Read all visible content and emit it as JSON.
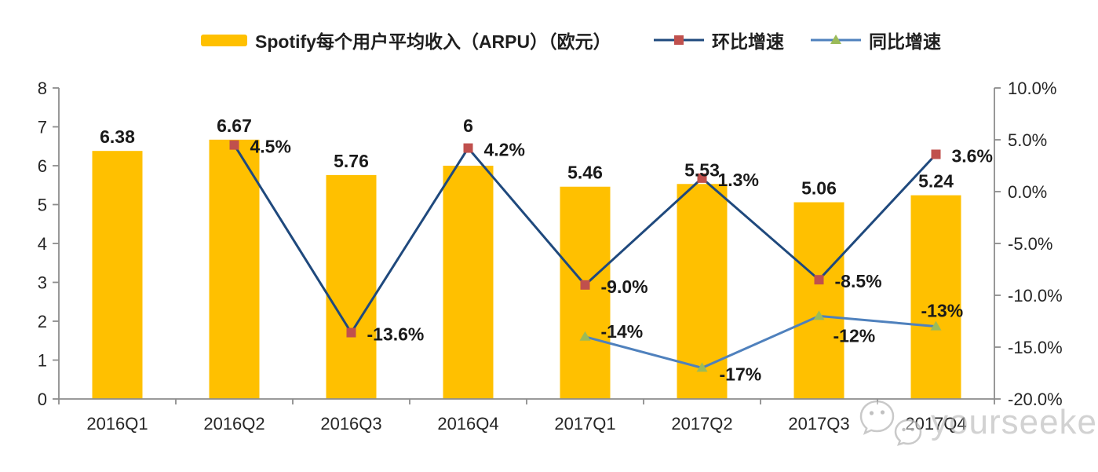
{
  "legend": {
    "arpu": {
      "label": "Spotify每个用户平均收入（ARPU）（欧元）",
      "swatch": "bar-swatch"
    },
    "qoq": {
      "label": "环比增速",
      "swatch": "line-with-square-marker"
    },
    "yoy": {
      "label": "同比增速",
      "swatch": "line-with-triangle-marker"
    }
  },
  "colors": {
    "bar": "#FFC000",
    "qoq_line": "#1F497D",
    "qoq_marker": "#C0504D",
    "yoy_line": "#4F81BD",
    "yoy_marker": "#9BBB59",
    "axis": "#8C8C8C",
    "label_text": "#1A1A1A"
  },
  "chart_data": {
    "type": "combo",
    "background": "#FFFFFF",
    "grid": false,
    "legend_position": "top",
    "categories": [
      "2016Q1",
      "2016Q2",
      "2016Q3",
      "2016Q4",
      "2017Q1",
      "2017Q2",
      "2017Q3",
      "2017Q4"
    ],
    "left_axis": {
      "min": 0,
      "max": 8,
      "step": 1,
      "ticks": [
        "0",
        "1",
        "2",
        "3",
        "4",
        "5",
        "6",
        "7",
        "8"
      ]
    },
    "right_axis": {
      "min": -20,
      "max": 10,
      "step": 5,
      "ticks": [
        "-20.0%",
        "-15.0%",
        "-10.0%",
        "-5.0%",
        "0.0%",
        "5.0%",
        "10.0%"
      ]
    },
    "series": [
      {
        "name": "Spotify每个用户平均收入（ARPU）（欧元）",
        "type": "bar",
        "axis": "left",
        "values": [
          6.38,
          6.67,
          5.76,
          6,
          5.46,
          5.53,
          5.06,
          5.24
        ],
        "labels": [
          "6.38",
          "6.67",
          "5.76",
          "6",
          "5.46",
          "5.53",
          "5.06",
          "5.24"
        ],
        "label_dy": [
          0,
          0,
          0,
          -33,
          0,
          0,
          0,
          0
        ]
      },
      {
        "name": "环比增速",
        "type": "line",
        "axis": "right",
        "marker": "square",
        "values": [
          null,
          4.5,
          -13.6,
          4.2,
          -9.0,
          1.3,
          -8.5,
          3.6
        ],
        "labels": [
          null,
          "4.5%",
          "-13.6%",
          "4.2%",
          "-9.0%",
          "1.3%",
          "-8.5%",
          "3.6%"
        ]
      },
      {
        "name": "同比增速",
        "type": "line",
        "axis": "right",
        "marker": "triangle",
        "values": [
          null,
          null,
          null,
          null,
          -14,
          -17,
          -12,
          -13
        ],
        "labels": [
          null,
          null,
          null,
          null,
          "-14%",
          "-17%",
          "-12%",
          "-13%"
        ],
        "label_dx": [
          null,
          null,
          null,
          null,
          20,
          22,
          18,
          -19
        ],
        "label_dy": [
          null,
          null,
          null,
          null,
          1,
          16,
          33,
          -12
        ]
      }
    ]
  },
  "watermark": {
    "text": "yourseeker",
    "icon": "wechat-icon"
  }
}
